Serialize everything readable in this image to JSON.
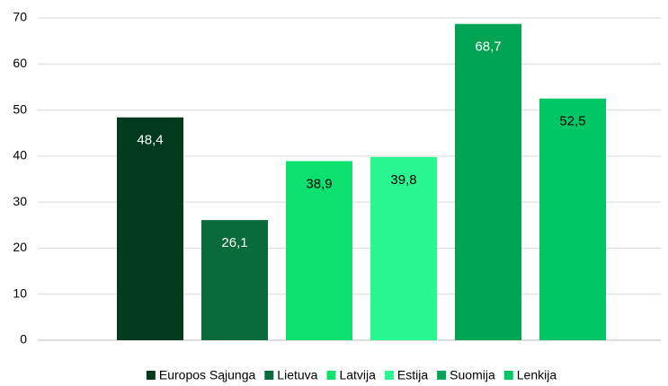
{
  "chart_data": {
    "type": "bar",
    "categories": [
      null
    ],
    "series": [
      {
        "name": "Europos Sąjunga",
        "color": "#013a1d",
        "values": [
          48.4
        ],
        "value_labels": [
          "48,4"
        ]
      },
      {
        "name": "Lietuva",
        "color": "#086b39",
        "values": [
          26.1
        ],
        "value_labels": [
          "26,1"
        ]
      },
      {
        "name": "Latvija",
        "color": "#0ce16f",
        "values": [
          38.9
        ],
        "value_labels": [
          "38,9"
        ]
      },
      {
        "name": "Estija",
        "color": "#29f890",
        "values": [
          39.8
        ],
        "value_labels": [
          "39,8"
        ]
      },
      {
        "name": "Suomija",
        "color": "#00a453",
        "values": [
          68.7
        ],
        "value_labels": [
          "68,7"
        ]
      },
      {
        "name": "Lenkija",
        "color": "#00c766",
        "values": [
          52.5
        ],
        "value_labels": [
          "52,5"
        ]
      }
    ],
    "ylim": [
      0,
      70
    ],
    "yticks": [
      0,
      10,
      20,
      30,
      40,
      50,
      60,
      70
    ],
    "grid": true,
    "legend": "bottom"
  }
}
